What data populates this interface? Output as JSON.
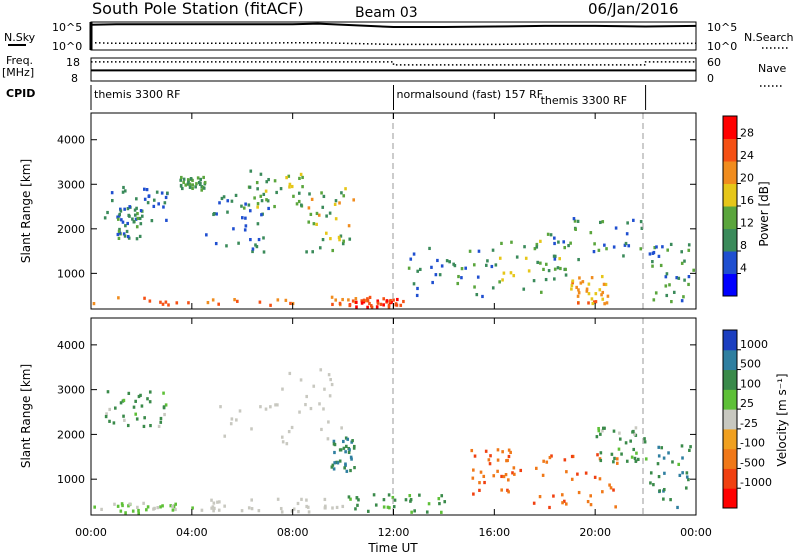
{
  "header": {
    "station": "South Pole Station (fitACF)",
    "beam": "Beam 03",
    "date": "06/Jan/2016"
  },
  "left_labels": {
    "nsky": "N.Sky",
    "freq_line1": "Freq.",
    "freq_line2": "[MHz]",
    "cpid": "CPID",
    "slant_range": "Slant Range [km]"
  },
  "right_labels": {
    "nsearch": "N.Search",
    "nave": "Nave"
  },
  "noise_axis": {
    "left_ticks": [
      "10^5",
      "10^0"
    ],
    "right_ticks": [
      "10^5",
      "10^0"
    ]
  },
  "freq_axis": {
    "left_ticks": [
      "18",
      "8"
    ],
    "right_ticks": [
      "60",
      "0"
    ]
  },
  "cpid_segments": [
    {
      "label": "themis 3300 RF",
      "start_hour": 0
    },
    {
      "label": "normalsound (fast) 157 RF",
      "start_hour": 12
    },
    {
      "label": "themis 3300 RF",
      "start_hour": 22
    }
  ],
  "x_axis": {
    "label": "Time UT",
    "ticks": [
      "00:00",
      "04:00",
      "08:00",
      "12:00",
      "16:00",
      "20:00",
      "00:00"
    ],
    "min_hour": 0,
    "max_hour": 24
  },
  "y_axis": {
    "ticks": [
      "4000",
      "3000",
      "2000",
      "1000"
    ],
    "min": 200,
    "max": 4600
  },
  "colorbars": {
    "power": {
      "label": "Power [dB]",
      "ticks": [
        "28",
        "24",
        "20",
        "16",
        "12",
        "8",
        "4"
      ],
      "colors": [
        "#0000ff",
        "#1f4fd0",
        "#3a8a5a",
        "#5aa53c",
        "#e6c619",
        "#f08c1e",
        "#f55014",
        "#ff0000"
      ]
    },
    "velocity": {
      "label": "Velocity [m s⁻¹]",
      "ticks": [
        "1000",
        "500",
        "100",
        "25",
        "-25",
        "-100",
        "-500",
        "-1000"
      ],
      "colors": [
        "#1c3fc0",
        "#2f7fa0",
        "#3a8a4a",
        "#5ec037",
        "#c8c8c0",
        "#f0a020",
        "#f07818",
        "#f04010",
        "#ff0000"
      ]
    }
  },
  "chart_data": [
    {
      "type": "line",
      "title": "N.Sky / N.Search",
      "x_hour": [
        0,
        1,
        2,
        4,
        6,
        8,
        9,
        10,
        12,
        14,
        16,
        18,
        20,
        22,
        24
      ],
      "series": [
        {
          "name": "N.Sky",
          "values_log10": [
            4.5,
            4.6,
            4.6,
            4.6,
            4.6,
            4.6,
            4.7,
            4.5,
            4.1,
            4.1,
            4.2,
            4.3,
            4.3,
            4.2,
            4.3
          ]
        },
        {
          "name": "N.Search",
          "values_log10": [
            1.3,
            1.2,
            1.2,
            1.2,
            1.2,
            1.3,
            1.3,
            1.2,
            1.0,
            1.0,
            1.0,
            1.1,
            1.1,
            1.1,
            1.2
          ]
        }
      ]
    },
    {
      "type": "line",
      "title": "Freq / Nave",
      "x_hour": [
        0,
        12,
        12,
        22,
        22,
        24
      ],
      "series": [
        {
          "name": "Freq",
          "values": [
            12.6,
            12.6,
            12.6,
            12.6,
            12.6,
            12.6
          ]
        },
        {
          "name": "Nave",
          "values": [
            50,
            50,
            42,
            42,
            50,
            50
          ]
        }
      ]
    },
    {
      "type": "heatmap",
      "title": "Power",
      "xlabel": "Time UT",
      "ylabel": "Slant Range [km]",
      "xlim": [
        0,
        24
      ],
      "ylim": [
        200,
        4600
      ],
      "blobs": [
        {
          "t": [
            0.0,
            12.0
          ],
          "r": [
            300,
            500
          ],
          "level": [
            20,
            28
          ]
        },
        {
          "t": [
            10.2,
            12.5
          ],
          "r": [
            250,
            500
          ],
          "level": [
            24,
            30
          ]
        },
        {
          "t": [
            0.5,
            3.0
          ],
          "r": [
            2200,
            3000
          ],
          "level": [
            4,
            12
          ]
        },
        {
          "t": [
            1.0,
            2.0
          ],
          "r": [
            1800,
            2600
          ],
          "level": [
            6,
            14
          ]
        },
        {
          "t": [
            3.5,
            4.5
          ],
          "r": [
            2900,
            3200
          ],
          "level": [
            8,
            16
          ]
        },
        {
          "t": [
            4.5,
            7.0
          ],
          "r": [
            1500,
            2800
          ],
          "level": [
            4,
            12
          ]
        },
        {
          "t": [
            6.0,
            8.5
          ],
          "r": [
            2500,
            3400
          ],
          "level": [
            8,
            18
          ]
        },
        {
          "t": [
            8.5,
            10.5
          ],
          "r": [
            1500,
            3000
          ],
          "level": [
            8,
            22
          ]
        },
        {
          "t": [
            12.5,
            16.0
          ],
          "r": [
            500,
            1600
          ],
          "level": [
            4,
            14
          ]
        },
        {
          "t": [
            16.0,
            19.0
          ],
          "r": [
            600,
            1800
          ],
          "level": [
            8,
            20
          ]
        },
        {
          "t": [
            18.0,
            22.0
          ],
          "r": [
            1300,
            2300
          ],
          "level": [
            4,
            14
          ]
        },
        {
          "t": [
            19.0,
            20.5
          ],
          "r": [
            350,
            1000
          ],
          "level": [
            16,
            26
          ]
        },
        {
          "t": [
            22.0,
            24.0
          ],
          "r": [
            400,
            1700
          ],
          "level": [
            6,
            16
          ]
        }
      ]
    },
    {
      "type": "heatmap",
      "title": "Velocity",
      "xlabel": "Time UT",
      "ylabel": "Slant Range [km]",
      "xlim": [
        0,
        24
      ],
      "ylim": [
        200,
        4600
      ],
      "blobs": [
        {
          "t": [
            0.0,
            4.0
          ],
          "r": [
            250,
            500
          ],
          "v": [
            -25,
            100
          ]
        },
        {
          "t": [
            4.0,
            10.0
          ],
          "r": [
            300,
            600
          ],
          "v": [
            -25,
            25
          ]
        },
        {
          "t": [
            10.0,
            14.0
          ],
          "r": [
            250,
            700
          ],
          "v": [
            25,
            300
          ]
        },
        {
          "t": [
            0.5,
            3.0
          ],
          "r": [
            2200,
            3000
          ],
          "v": [
            -25,
            500
          ]
        },
        {
          "t": [
            5.0,
            10.0
          ],
          "r": [
            1800,
            3500
          ],
          "v": [
            -25,
            25
          ]
        },
        {
          "t": [
            9.5,
            10.5
          ],
          "r": [
            1200,
            2000
          ],
          "v": [
            200,
            800
          ]
        },
        {
          "t": [
            15.0,
            17.0
          ],
          "r": [
            700,
            1700
          ],
          "v": [
            -800,
            -200
          ]
        },
        {
          "t": [
            17.5,
            21.0
          ],
          "r": [
            400,
            1600
          ],
          "v": [
            -700,
            -100
          ]
        },
        {
          "t": [
            20.0,
            22.0
          ],
          "r": [
            1400,
            2200
          ],
          "v": [
            -25,
            500
          ]
        },
        {
          "t": [
            22.0,
            24.0
          ],
          "r": [
            400,
            1800
          ],
          "v": [
            50,
            700
          ]
        }
      ]
    }
  ]
}
